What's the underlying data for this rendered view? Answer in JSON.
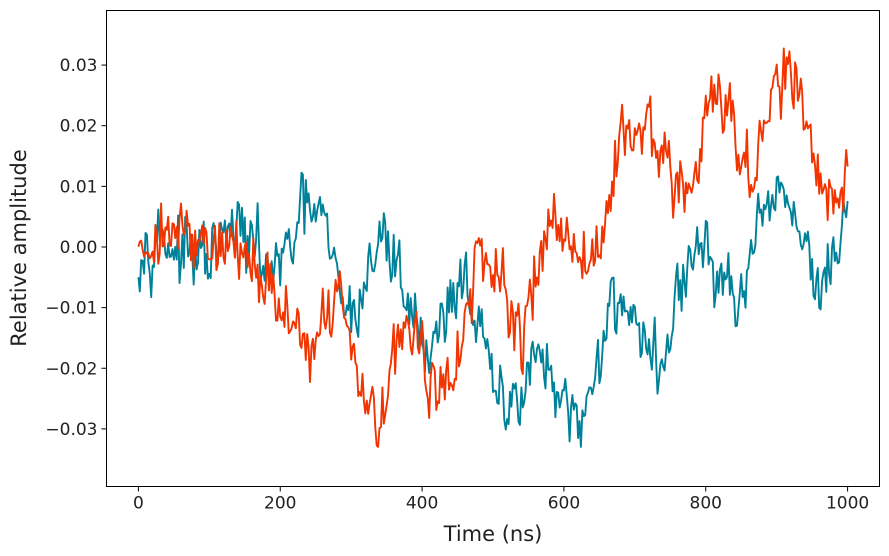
{
  "chart_data": {
    "type": "line",
    "title": "",
    "xlabel": "Time (ns)",
    "ylabel": "Relative amplitude",
    "xlim": [
      -45,
      1045
    ],
    "ylim": [
      -0.0395,
      0.039
    ],
    "grid": false,
    "legend": "none",
    "x_ticks": [
      0,
      200,
      400,
      600,
      800,
      1000
    ],
    "x_tick_labels": [
      "0",
      "200",
      "400",
      "600",
      "800",
      "1000"
    ],
    "y_ticks": [
      -0.03,
      -0.02,
      -0.01,
      0.0,
      0.01,
      0.02,
      0.03
    ],
    "y_tick_labels": [
      "−0.03",
      "−0.02",
      "−0.01",
      "0.00",
      "0.01",
      "0.02",
      "0.03"
    ],
    "series": [
      {
        "name": "teal",
        "color": "#00819a",
        "noise": 0.0042,
        "x": [
          0,
          20,
          40,
          60,
          80,
          100,
          120,
          140,
          160,
          180,
          200,
          220,
          240,
          260,
          280,
          300,
          320,
          340,
          360,
          380,
          400,
          420,
          440,
          460,
          480,
          500,
          520,
          540,
          560,
          580,
          600,
          620,
          640,
          660,
          680,
          700,
          720,
          740,
          760,
          780,
          800,
          820,
          840,
          860,
          880,
          900,
          920,
          940,
          960,
          980,
          1000
        ],
        "y": [
          0.0,
          0.002,
          0.0015,
          -0.0015,
          -0.002,
          -0.002,
          0.001,
          0.003,
          0.0,
          -0.003,
          -0.004,
          0.002,
          0.007,
          0.004,
          -0.006,
          -0.012,
          -0.006,
          0.002,
          -0.002,
          -0.008,
          -0.016,
          -0.015,
          -0.008,
          -0.004,
          -0.014,
          -0.023,
          -0.028,
          -0.022,
          -0.017,
          -0.022,
          -0.028,
          -0.031,
          -0.022,
          -0.012,
          -0.008,
          -0.011,
          -0.018,
          -0.02,
          -0.008,
          -0.002,
          0.0,
          -0.006,
          -0.009,
          -0.006,
          0.003,
          0.01,
          0.007,
          0.001,
          -0.008,
          -0.004,
          0.009
        ]
      },
      {
        "name": "orange",
        "color": "#f23500",
        "noise": 0.0042,
        "x": [
          0,
          20,
          40,
          60,
          80,
          100,
          120,
          140,
          160,
          180,
          200,
          220,
          240,
          260,
          280,
          300,
          320,
          340,
          360,
          380,
          400,
          420,
          440,
          460,
          480,
          500,
          520,
          540,
          560,
          580,
          600,
          620,
          640,
          660,
          680,
          700,
          720,
          740,
          760,
          780,
          800,
          820,
          840,
          860,
          880,
          900,
          920,
          940,
          960,
          980,
          1000
        ],
        "y": [
          0.002,
          0.001,
          0.0025,
          0.002,
          0.001,
          0.001,
          0.0,
          0.0,
          -0.002,
          -0.006,
          -0.01,
          -0.014,
          -0.015,
          -0.013,
          -0.009,
          -0.015,
          -0.025,
          -0.027,
          -0.017,
          -0.012,
          -0.018,
          -0.025,
          -0.022,
          -0.012,
          -0.003,
          -0.005,
          -0.011,
          -0.016,
          -0.002,
          0.006,
          0.002,
          -0.003,
          -0.003,
          0.006,
          0.017,
          0.022,
          0.02,
          0.012,
          0.012,
          0.008,
          0.022,
          0.026,
          0.02,
          0.012,
          0.016,
          0.026,
          0.03,
          0.02,
          0.011,
          0.006,
          0.012
        ]
      }
    ]
  }
}
